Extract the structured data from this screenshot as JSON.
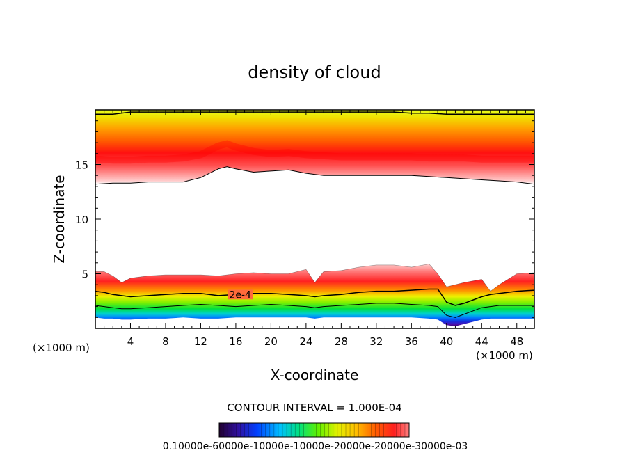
{
  "chart_data": {
    "type": "heatmap",
    "title": "density of cloud",
    "xlabel": "X-coordinate",
    "ylabel": "Z-coordinate",
    "x_unit_label_left": "(×1000 m)",
    "x_unit_label_right": "(×1000 m)",
    "xlim": [
      0,
      50
    ],
    "ylim": [
      0,
      20
    ],
    "x_ticks": [
      "4",
      "8",
      "12",
      "16",
      "20",
      "24",
      "28",
      "32",
      "36",
      "40",
      "44",
      "48"
    ],
    "x_tick_values": [
      4,
      8,
      12,
      16,
      20,
      24,
      28,
      32,
      36,
      40,
      44,
      48
    ],
    "y_ticks": [
      "5",
      "10",
      "15"
    ],
    "y_tick_values": [
      5,
      10,
      15
    ],
    "contour_interval_text": "CONTOUR INTERVAL = 1.000E-04",
    "contour_label": "2e-4",
    "colorbar_labels_text": "0.10000e-60000e-10000e-10000e-20000e-20000e-30000e-03",
    "upper_layer": {
      "x": [
        0,
        2,
        4,
        6,
        8,
        10,
        12,
        13,
        14,
        15,
        16,
        18,
        20,
        22,
        24,
        26,
        28,
        30,
        32,
        34,
        36,
        38,
        40,
        42,
        44,
        46,
        48,
        50
      ],
      "bottom": [
        13.2,
        13.3,
        13.3,
        13.4,
        13.4,
        13.4,
        13.8,
        14.2,
        14.6,
        14.8,
        14.6,
        14.3,
        14.4,
        14.5,
        14.2,
        14.0,
        14.0,
        14.0,
        14.0,
        14.0,
        14.0,
        13.9,
        13.8,
        13.7,
        13.6,
        13.5,
        13.4,
        13.2
      ],
      "peak": [
        15.5,
        15.4,
        15.4,
        15.5,
        15.5,
        15.6,
        15.9,
        16.3,
        16.7,
        16.9,
        16.6,
        16.2,
        16.0,
        16.1,
        15.9,
        15.8,
        15.7,
        15.7,
        15.7,
        15.7,
        15.7,
        15.6,
        15.6,
        15.6,
        15.5,
        15.5,
        15.5,
        15.5
      ],
      "top_contour": [
        19.6,
        19.6,
        19.8,
        19.8,
        19.8,
        19.8,
        19.8,
        19.8,
        19.8,
        19.8,
        19.8,
        19.8,
        19.8,
        19.8,
        19.8,
        19.8,
        19.8,
        19.8,
        19.8,
        19.8,
        19.7,
        19.7,
        19.6,
        19.6,
        19.6,
        19.6,
        19.6,
        19.6
      ]
    },
    "lower_layer": {
      "x": [
        0,
        1,
        2,
        3,
        4,
        6,
        8,
        10,
        12,
        14,
        16,
        18,
        20,
        22,
        24,
        25,
        26,
        28,
        30,
        32,
        34,
        36,
        38,
        39,
        40,
        41,
        42,
        44,
        45,
        46,
        48,
        50
      ],
      "top": [
        5.2,
        5.2,
        4.8,
        4.2,
        4.6,
        4.8,
        4.9,
        4.9,
        4.9,
        4.8,
        5.0,
        5.1,
        5.0,
        5.0,
        5.4,
        4.2,
        5.2,
        5.3,
        5.6,
        5.8,
        5.8,
        5.6,
        5.9,
        5.0,
        3.8,
        4.0,
        4.2,
        4.5,
        3.4,
        4.0,
        5.0,
        5.1
      ],
      "contour_2e4": [
        3.4,
        3.3,
        3.1,
        3.0,
        2.9,
        3.0,
        3.1,
        3.2,
        3.2,
        3.0,
        3.1,
        3.2,
        3.2,
        3.1,
        3.0,
        2.9,
        3.0,
        3.1,
        3.3,
        3.4,
        3.4,
        3.5,
        3.6,
        3.6,
        2.4,
        2.1,
        2.3,
        2.9,
        3.1,
        3.2,
        3.4,
        3.5
      ],
      "contour_1e4": [
        2.1,
        2.0,
        1.9,
        1.8,
        1.8,
        1.9,
        2.0,
        2.1,
        2.2,
        2.1,
        2.0,
        2.1,
        2.2,
        2.1,
        2.0,
        1.9,
        2.0,
        2.1,
        2.2,
        2.3,
        2.3,
        2.2,
        2.1,
        2.0,
        1.2,
        1.0,
        1.3,
        1.9,
        2.0,
        2.1,
        2.1,
        2.1
      ],
      "bottom": [
        1.0,
        0.9,
        0.9,
        0.8,
        0.8,
        0.9,
        0.9,
        1.0,
        0.9,
        0.9,
        1.0,
        1.0,
        1.0,
        1.0,
        1.0,
        0.9,
        1.0,
        1.0,
        1.0,
        1.0,
        1.0,
        1.0,
        0.9,
        0.8,
        0.3,
        0.2,
        0.4,
        0.8,
        0.9,
        0.9,
        0.9,
        0.9
      ]
    },
    "colormap": [
      "#1a0030",
      "#2a0080",
      "#0000d0",
      "#0060ff",
      "#00b0ff",
      "#00e0b0",
      "#00e000",
      "#80f000",
      "#e0ff00",
      "#ffe000",
      "#ffa000",
      "#ff5000",
      "#ff0000",
      "#ff6060",
      "#ffc0c0"
    ],
    "grid": false,
    "legend": "colorbar-bottom"
  }
}
